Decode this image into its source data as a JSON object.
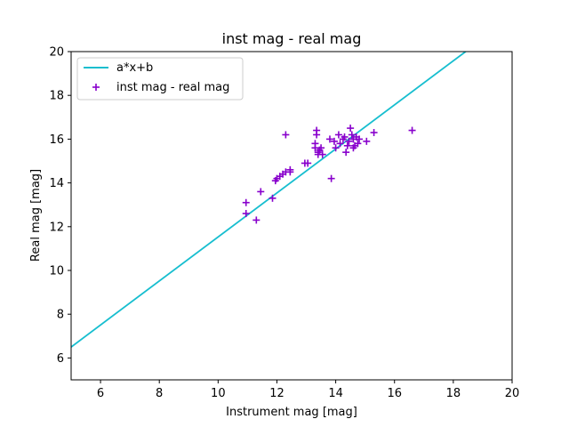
{
  "chart_data": {
    "type": "scatter",
    "title": "inst mag - real mag",
    "xlabel": "Instrument mag [mag]",
    "ylabel": "Real mag [mag]",
    "xlim": [
      5,
      20
    ],
    "ylim": [
      5,
      20
    ],
    "xticks": [
      "6",
      "8",
      "10",
      "12",
      "14",
      "16",
      "18",
      "20"
    ],
    "yticks": [
      "6",
      "8",
      "10",
      "12",
      "14",
      "16",
      "18",
      "20"
    ],
    "grid": false,
    "legend_position": "upper-left",
    "series": [
      {
        "name": "a*x+b",
        "kind": "line",
        "color": "#17becf",
        "x": [
          5,
          18.42
        ],
        "y": [
          6.5,
          20
        ]
      },
      {
        "name": "inst mag - real mag",
        "kind": "scatter",
        "marker": "plus",
        "color": "#8800cc",
        "x": [
          10.95,
          10.95,
          11.3,
          11.45,
          11.85,
          11.95,
          12.0,
          12.1,
          12.2,
          12.3,
          12.3,
          12.45,
          12.45,
          12.95,
          13.05,
          13.3,
          13.3,
          13.35,
          13.35,
          13.4,
          13.4,
          13.45,
          13.5,
          13.55,
          13.8,
          13.85,
          13.95,
          14.0,
          14.1,
          14.15,
          14.25,
          14.3,
          14.35,
          14.4,
          14.45,
          14.5,
          14.55,
          14.6,
          14.6,
          14.65,
          14.7,
          14.75,
          14.8,
          15.05,
          15.3,
          16.6
        ],
        "y": [
          12.6,
          13.1,
          12.3,
          13.6,
          13.3,
          14.1,
          14.2,
          14.3,
          14.4,
          16.2,
          14.5,
          14.5,
          14.6,
          14.9,
          14.9,
          15.6,
          15.8,
          16.2,
          16.4,
          15.4,
          15.3,
          15.5,
          15.6,
          15.3,
          16.0,
          14.2,
          15.9,
          15.6,
          16.2,
          15.8,
          16.0,
          16.1,
          15.4,
          15.7,
          15.9,
          16.5,
          16.2,
          15.6,
          16.0,
          15.7,
          16.1,
          15.8,
          16.0,
          15.9,
          16.3,
          16.4
        ]
      }
    ]
  }
}
